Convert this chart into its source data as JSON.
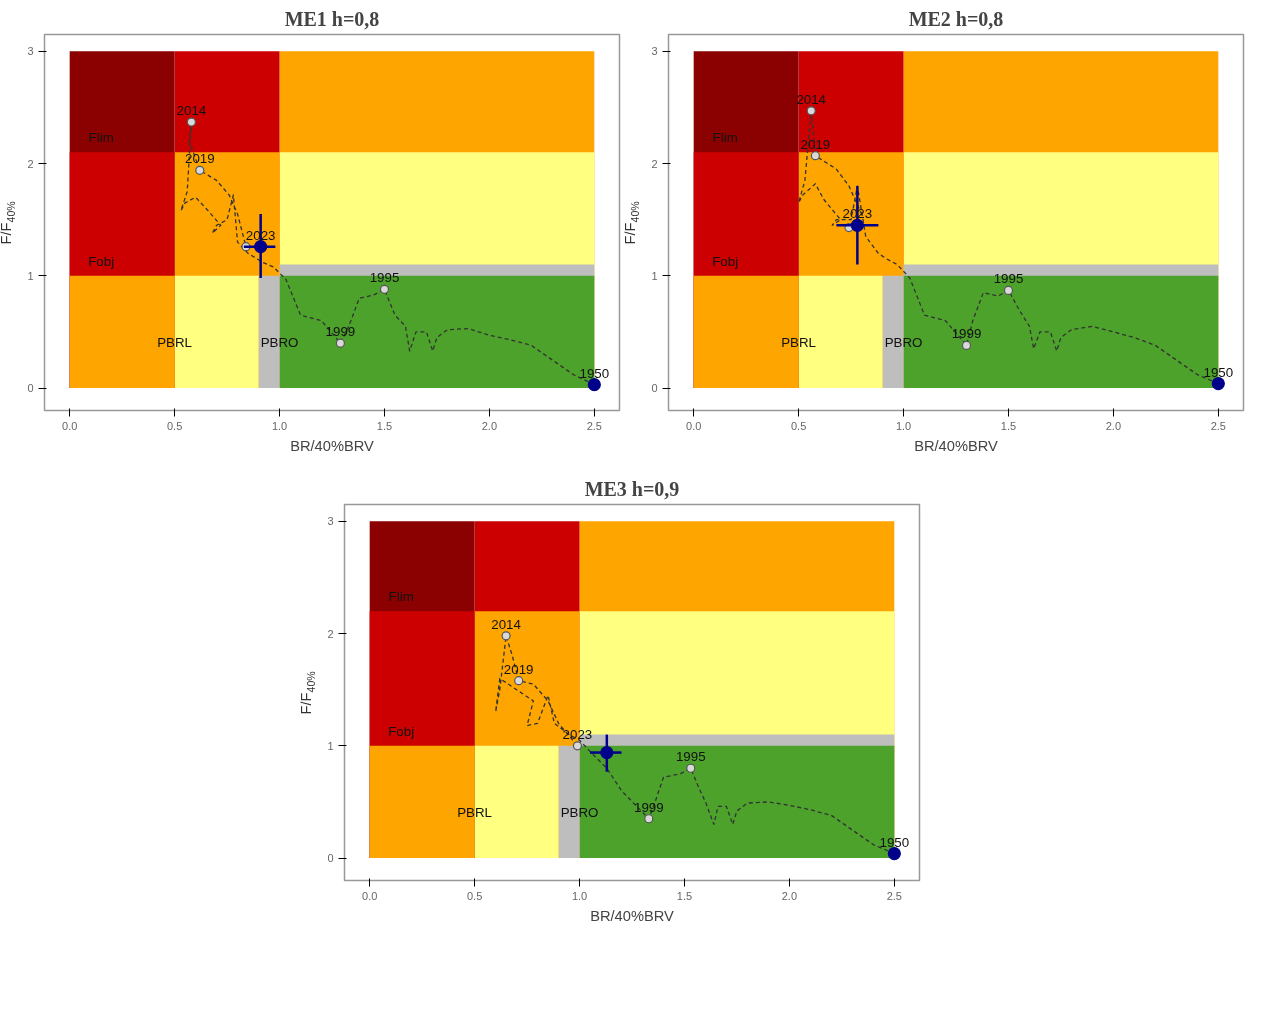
{
  "chart_data": [
    {
      "type": "line",
      "title": "ME1 h=0,8",
      "xlabel": "BR/40%BRV",
      "ylabel": "F/F$_{40%}$",
      "grid": false,
      "xlim": [
        -0.12,
        2.62
      ],
      "ylim": [
        -0.2,
        3.15
      ],
      "xticks": [
        {
          "value": 0,
          "label": "0.0"
        },
        {
          "value": 0.5,
          "label": "0.5"
        },
        {
          "value": 1,
          "label": "1.0"
        },
        {
          "value": 1.5,
          "label": "1.5"
        },
        {
          "value": 2,
          "label": "2.0"
        },
        {
          "value": 2.5,
          "label": "2.5"
        }
      ],
      "yticks": [
        0,
        1,
        2,
        3
      ],
      "series": [
        {
          "type": "area",
          "color": "#ffa500",
          "x": [
            1,
            2.5
          ],
          "values": [
            3,
            3
          ]
        },
        {
          "type": "area",
          "color": "#cc0000",
          "x": [
            0.5,
            1
          ],
          "values": [
            3,
            3
          ]
        },
        {
          "type": "area",
          "color": "#8b0000",
          "x": [
            0,
            0.5
          ],
          "values": [
            3,
            3
          ]
        },
        {
          "type": "area",
          "color": "#ffff80",
          "x": [
            1,
            2.5
          ],
          "values": [
            2.1,
            2.1
          ]
        },
        {
          "type": "area",
          "color": "#ffa500",
          "x": [
            0.5,
            1
          ],
          "values": [
            2.1,
            2.1
          ]
        },
        {
          "type": "area",
          "color": "#cc0000",
          "x": [
            0,
            0.5
          ],
          "values": [
            2.1,
            2.1
          ]
        },
        {
          "type": "area",
          "color": "#bebebe",
          "x": [
            1,
            2.5
          ],
          "values": [
            1.1,
            1.1
          ]
        },
        {
          "type": "area",
          "color": "#4ca22a",
          "x": [
            1,
            2.5
          ],
          "values": [
            1,
            1
          ]
        },
        {
          "type": "area",
          "color": "#bebebe",
          "x": [
            0.9,
            1
          ],
          "values": [
            1,
            1
          ]
        },
        {
          "type": "area",
          "color": "#ffff80",
          "x": [
            0.5,
            0.9
          ],
          "values": [
            1,
            1
          ]
        },
        {
          "type": "area",
          "color": "#ffa500",
          "x": [
            0,
            0.5
          ],
          "values": [
            1,
            1
          ]
        },
        {
          "color": "#333333",
          "line_style": "dashed",
          "x": [
            2.5,
            2.4,
            2.3,
            2.2,
            2.1,
            2.0,
            1.9,
            1.8,
            1.75,
            1.73,
            1.7,
            1.65,
            1.62,
            1.6,
            1.55,
            1.5,
            1.45,
            1.38,
            1.33,
            1.29,
            1.2,
            1.1,
            1.03,
            0.97,
            0.92,
            0.85,
            0.8,
            0.78,
            0.75,
            0.7,
            0.68,
            0.72,
            0.65,
            0.6,
            0.55,
            0.53,
            0.56,
            0.58,
            0.57,
            0.62,
            0.7,
            0.76,
            0.8,
            0.84
          ],
          "values": [
            0.03,
            0.12,
            0.25,
            0.38,
            0.43,
            0.47,
            0.53,
            0.52,
            0.45,
            0.33,
            0.5,
            0.5,
            0.33,
            0.55,
            0.65,
            0.88,
            0.83,
            0.8,
            0.55,
            0.4,
            0.6,
            0.65,
            0.97,
            1.08,
            1.12,
            1.2,
            1.3,
            1.72,
            1.5,
            1.45,
            1.38,
            1.45,
            1.6,
            1.7,
            1.65,
            1.58,
            1.75,
            2.37,
            2.2,
            1.94,
            1.85,
            1.72,
            1.55,
            1.26
          ]
        },
        {
          "type": "scatter",
          "color": "#d9d9d9",
          "marker": "circle",
          "x": [
            1.5,
            1.29,
            0.58,
            0.62,
            0.84
          ],
          "values": [
            0.88,
            0.4,
            2.37,
            1.94,
            1.26
          ]
        },
        {
          "type": "scatter",
          "color": "#00008b",
          "marker": "circle",
          "x": [
            2.5,
            0.91
          ],
          "values": [
            0.03,
            1.26
          ],
          "errors": [
            null,
            [
              0.98,
              1.55
            ]
          ],
          "xerrors": [
            null,
            [
              0.83,
              0.98
            ]
          ]
        }
      ],
      "annotations": [
        {
          "text": "Flim",
          "x": 0.15,
          "y": 2.1
        },
        {
          "text": "Fobj",
          "x": 0.15,
          "y": 1
        },
        {
          "text": "PBRL",
          "x": 0.5,
          "y": 0.28
        },
        {
          "text": "PBRO",
          "x": 1.0,
          "y": 0.28
        },
        {
          "text": "1950",
          "x": 2.5,
          "y": 0.03
        },
        {
          "text": "1995",
          "x": 1.5,
          "y": 0.88
        },
        {
          "text": "1999",
          "x": 1.29,
          "y": 0.4
        },
        {
          "text": "2014",
          "x": 0.58,
          "y": 2.37
        },
        {
          "text": "2019",
          "x": 0.62,
          "y": 1.94
        },
        {
          "text": "2023",
          "x": 0.91,
          "y": 1.26
        }
      ]
    },
    {
      "type": "line",
      "title": "ME2 h=0,8",
      "xlabel": "BR/40%BRV",
      "ylabel": "F/F$_{40%}$",
      "grid": false,
      "xlim": [
        -0.12,
        2.62
      ],
      "ylim": [
        -0.2,
        3.15
      ],
      "xticks": [
        {
          "value": 0,
          "label": "0.0"
        },
        {
          "value": 0.5,
          "label": "0.5"
        },
        {
          "value": 1,
          "label": "1.0"
        },
        {
          "value": 1.5,
          "label": "1.5"
        },
        {
          "value": 2,
          "label": "2.0"
        },
        {
          "value": 2.5,
          "label": "2.5"
        }
      ],
      "yticks": [
        0,
        1,
        2,
        3
      ],
      "series": [
        {
          "type": "area",
          "color": "#ffa500",
          "x": [
            1,
            2.5
          ],
          "values": [
            3,
            3
          ]
        },
        {
          "type": "area",
          "color": "#cc0000",
          "x": [
            0.5,
            1
          ],
          "values": [
            3,
            3
          ]
        },
        {
          "type": "area",
          "color": "#8b0000",
          "x": [
            0,
            0.5
          ],
          "values": [
            3,
            3
          ]
        },
        {
          "type": "area",
          "color": "#ffff80",
          "x": [
            1,
            2.5
          ],
          "values": [
            2.1,
            2.1
          ]
        },
        {
          "type": "area",
          "color": "#ffa500",
          "x": [
            0.5,
            1
          ],
          "values": [
            2.1,
            2.1
          ]
        },
        {
          "type": "area",
          "color": "#cc0000",
          "x": [
            0,
            0.5
          ],
          "values": [
            2.1,
            2.1
          ]
        },
        {
          "type": "area",
          "color": "#bebebe",
          "x": [
            1,
            2.5
          ],
          "values": [
            1.1,
            1.1
          ]
        },
        {
          "type": "area",
          "color": "#4ca22a",
          "x": [
            1,
            2.5
          ],
          "values": [
            1,
            1
          ]
        },
        {
          "type": "area",
          "color": "#bebebe",
          "x": [
            0.9,
            1
          ],
          "values": [
            1,
            1
          ]
        },
        {
          "type": "area",
          "color": "#ffff80",
          "x": [
            0.5,
            0.9
          ],
          "values": [
            1,
            1
          ]
        },
        {
          "type": "area",
          "color": "#ffa500",
          "x": [
            0,
            0.5
          ],
          "values": [
            1,
            1
          ]
        },
        {
          "color": "#333333",
          "line_style": "dashed",
          "x": [
            2.5,
            2.4,
            2.3,
            2.2,
            2.1,
            2.0,
            1.9,
            1.8,
            1.75,
            1.73,
            1.7,
            1.65,
            1.62,
            1.6,
            1.55,
            1.5,
            1.45,
            1.38,
            1.33,
            1.3,
            1.2,
            1.1,
            1.03,
            0.97,
            0.92,
            0.88,
            0.82,
            0.78,
            0.75,
            0.68,
            0.66,
            0.7,
            0.62,
            0.58,
            0.52,
            0.5,
            0.53,
            0.56,
            0.57,
            0.58,
            0.68,
            0.74,
            0.8,
            0.74
          ],
          "values": [
            0.04,
            0.12,
            0.25,
            0.38,
            0.45,
            0.5,
            0.55,
            0.52,
            0.45,
            0.33,
            0.5,
            0.5,
            0.35,
            0.55,
            0.7,
            0.87,
            0.82,
            0.85,
            0.6,
            0.38,
            0.6,
            0.65,
            0.98,
            1.1,
            1.15,
            1.2,
            1.35,
            1.8,
            1.5,
            1.5,
            1.45,
            1.5,
            1.68,
            1.82,
            1.72,
            1.65,
            1.85,
            2.47,
            2.3,
            2.07,
            1.95,
            1.8,
            1.55,
            1.43
          ]
        },
        {
          "type": "scatter",
          "color": "#d9d9d9",
          "marker": "circle",
          "x": [
            1.5,
            1.3,
            0.56,
            0.58,
            0.74
          ],
          "values": [
            0.87,
            0.38,
            2.47,
            2.07,
            1.43
          ]
        },
        {
          "type": "scatter",
          "color": "#00008b",
          "marker": "circle",
          "x": [
            2.5,
            0.78
          ],
          "values": [
            0.04,
            1.45
          ],
          "errors": [
            null,
            [
              1.1,
              1.8
            ]
          ],
          "xerrors": [
            null,
            [
              0.68,
              0.88
            ]
          ]
        }
      ],
      "annotations": [
        {
          "text": "Flim",
          "x": 0.15,
          "y": 2.1
        },
        {
          "text": "Fobj",
          "x": 0.15,
          "y": 1
        },
        {
          "text": "PBRL",
          "x": 0.5,
          "y": 0.28
        },
        {
          "text": "PBRO",
          "x": 1.0,
          "y": 0.28
        },
        {
          "text": "1950",
          "x": 2.5,
          "y": 0.04
        },
        {
          "text": "1995",
          "x": 1.5,
          "y": 0.87
        },
        {
          "text": "1999",
          "x": 1.3,
          "y": 0.38
        },
        {
          "text": "2014",
          "x": 0.56,
          "y": 2.47
        },
        {
          "text": "2019",
          "x": 0.58,
          "y": 2.07
        },
        {
          "text": "2023",
          "x": 0.78,
          "y": 1.45
        }
      ]
    },
    {
      "type": "line",
      "title": "ME3 h=0,9",
      "xlabel": "BR/40%BRV",
      "ylabel": "F/F$_{40%}$",
      "grid": false,
      "xlim": [
        -0.12,
        2.62
      ],
      "ylim": [
        -0.2,
        3.15
      ],
      "xticks": [
        {
          "value": 0,
          "label": "0.0"
        },
        {
          "value": 0.5,
          "label": "0.5"
        },
        {
          "value": 1,
          "label": "1.0"
        },
        {
          "value": 1.5,
          "label": "1.5"
        },
        {
          "value": 2,
          "label": "2.0"
        },
        {
          "value": 2.5,
          "label": "2.5"
        }
      ],
      "yticks": [
        0,
        1,
        2,
        3
      ],
      "series": [
        {
          "type": "area",
          "color": "#ffa500",
          "x": [
            1,
            2.5
          ],
          "values": [
            3,
            3
          ]
        },
        {
          "type": "area",
          "color": "#cc0000",
          "x": [
            0.5,
            1
          ],
          "values": [
            3,
            3
          ]
        },
        {
          "type": "area",
          "color": "#8b0000",
          "x": [
            0,
            0.5
          ],
          "values": [
            3,
            3
          ]
        },
        {
          "type": "area",
          "color": "#ffff80",
          "x": [
            1,
            2.5
          ],
          "values": [
            2.2,
            2.2
          ]
        },
        {
          "type": "area",
          "color": "#ffa500",
          "x": [
            0.5,
            1
          ],
          "values": [
            2.2,
            2.2
          ]
        },
        {
          "type": "area",
          "color": "#cc0000",
          "x": [
            0,
            0.5
          ],
          "values": [
            2.2,
            2.2
          ]
        },
        {
          "type": "area",
          "color": "#bebebe",
          "x": [
            1,
            2.5
          ],
          "values": [
            1.1,
            1.1
          ]
        },
        {
          "type": "area",
          "color": "#4ca22a",
          "x": [
            1,
            2.5
          ],
          "values": [
            1,
            1
          ]
        },
        {
          "type": "area",
          "color": "#bebebe",
          "x": [
            0.9,
            1
          ],
          "values": [
            1,
            1
          ]
        },
        {
          "type": "area",
          "color": "#ffff80",
          "x": [
            0.5,
            0.9
          ],
          "values": [
            1,
            1
          ]
        },
        {
          "type": "area",
          "color": "#ffa500",
          "x": [
            0,
            0.5
          ],
          "values": [
            1,
            1
          ]
        },
        {
          "color": "#333333",
          "line_style": "dashed",
          "x": [
            2.5,
            2.4,
            2.3,
            2.2,
            2.1,
            2.0,
            1.9,
            1.8,
            1.75,
            1.73,
            1.7,
            1.66,
            1.64,
            1.6,
            1.57,
            1.53,
            1.48,
            1.4,
            1.36,
            1.33,
            1.2,
            1.13,
            1.05,
            1.0,
            0.95,
            0.88,
            0.85,
            0.8,
            0.75,
            0.78,
            0.7,
            0.62,
            0.6,
            0.62,
            0.65,
            0.68,
            0.71,
            0.78,
            0.85,
            0.9,
            0.99
          ],
          "values": [
            0.04,
            0.12,
            0.25,
            0.38,
            0.43,
            0.47,
            0.5,
            0.49,
            0.42,
            0.3,
            0.46,
            0.46,
            0.3,
            0.5,
            0.62,
            0.8,
            0.75,
            0.72,
            0.5,
            0.35,
            0.6,
            0.8,
            0.95,
            1.05,
            1.1,
            1.2,
            1.45,
            1.2,
            1.18,
            1.4,
            1.5,
            1.6,
            1.3,
            1.5,
            1.98,
            1.8,
            1.58,
            1.55,
            1.4,
            1.2,
            1.0
          ]
        },
        {
          "type": "scatter",
          "color": "#d9d9d9",
          "marker": "circle",
          "x": [
            1.53,
            1.33,
            0.65,
            0.71,
            0.99
          ],
          "values": [
            0.8,
            0.35,
            1.98,
            1.58,
            1.0
          ]
        },
        {
          "type": "scatter",
          "color": "#00008b",
          "marker": "circle",
          "x": [
            2.5,
            1.13
          ],
          "values": [
            0.04,
            0.94
          ],
          "errors": [
            null,
            [
              0.77,
              1.1
            ]
          ],
          "xerrors": [
            null,
            [
              1.05,
              1.2
            ]
          ]
        }
      ],
      "annotations": [
        {
          "text": "Flim",
          "x": 0.15,
          "y": 2.2
        },
        {
          "text": "Fobj",
          "x": 0.15,
          "y": 1
        },
        {
          "text": "PBRL",
          "x": 0.5,
          "y": 0.28
        },
        {
          "text": "PBRO",
          "x": 1.0,
          "y": 0.28
        },
        {
          "text": "1950",
          "x": 2.5,
          "y": 0.04
        },
        {
          "text": "1995",
          "x": 1.53,
          "y": 0.8
        },
        {
          "text": "1999",
          "x": 1.33,
          "y": 0.35
        },
        {
          "text": "2014",
          "x": 0.65,
          "y": 1.98
        },
        {
          "text": "2019",
          "x": 0.71,
          "y": 1.58
        },
        {
          "text": "2023",
          "x": 0.99,
          "y": 1.0
        }
      ]
    }
  ]
}
